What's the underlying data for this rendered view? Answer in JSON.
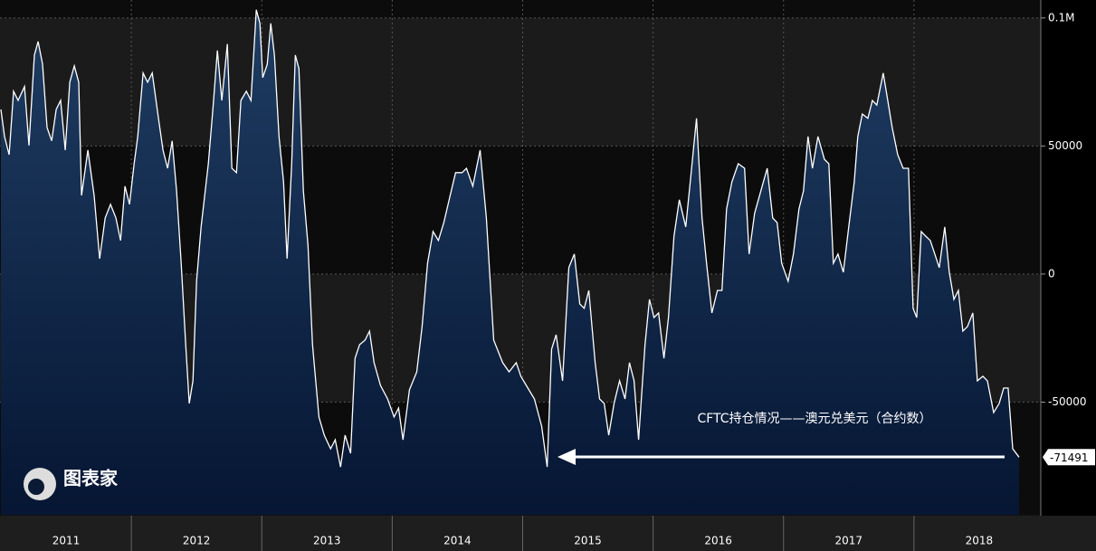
{
  "chart_data": {
    "type": "area",
    "annotation": "CFTC持仓情况——澳元兑美元（合约数）",
    "watermark": "图表家",
    "color": "#ffffff",
    "fill_top": "#1f3d63",
    "fill_bottom": "#061633",
    "grid": true,
    "xlim": [
      2011,
      2019
    ],
    "xticks": [
      {
        "value": 2011.5,
        "label": "2011"
      },
      {
        "value": 2012.5,
        "label": "2012"
      },
      {
        "value": 2013.5,
        "label": "2013"
      },
      {
        "value": 2014.5,
        "label": "2014"
      },
      {
        "value": 2015.5,
        "label": "2015"
      },
      {
        "value": 2016.5,
        "label": "2016"
      },
      {
        "value": 2017.5,
        "label": "2017"
      },
      {
        "value": 2018.5,
        "label": "2018"
      }
    ],
    "ylim": [
      -94000,
      107000
    ],
    "yticks": [
      {
        "value": 100000,
        "label": "0.1M"
      },
      50000,
      0,
      -50000
    ],
    "x": [
      2011.0,
      2011.028,
      2011.063,
      2011.097,
      2011.132,
      2011.181,
      2011.215,
      2011.257,
      2011.285,
      2011.319,
      2011.354,
      2011.389,
      2011.424,
      2011.458,
      2011.493,
      2011.528,
      2011.563,
      2011.597,
      2011.618,
      2011.667,
      2011.715,
      2011.757,
      2011.799,
      2011.84,
      2011.882,
      2011.917,
      2011.951,
      2011.986,
      2012.021,
      2012.049,
      2012.09,
      2012.125,
      2012.16,
      2012.208,
      2012.243,
      2012.278,
      2012.313,
      2012.347,
      2012.382,
      2012.417,
      2012.444,
      2012.472,
      2012.5,
      2012.535,
      2012.59,
      2012.625,
      2012.66,
      2012.694,
      2012.736,
      2012.771,
      2012.806,
      2012.84,
      2012.882,
      2012.917,
      2012.958,
      2012.986,
      2013.007,
      2013.042,
      2013.069,
      2013.097,
      2013.132,
      2013.167,
      2013.194,
      2013.229,
      2013.257,
      2013.285,
      2013.319,
      2013.354,
      2013.389,
      2013.438,
      2013.479,
      2013.528,
      2013.563,
      2013.604,
      2013.639,
      2013.681,
      2013.715,
      2013.75,
      2013.792,
      2013.826,
      2013.861,
      2013.91,
      2013.965,
      2014.014,
      2014.049,
      2014.083,
      2014.132,
      2014.188,
      2014.229,
      2014.271,
      2014.313,
      2014.354,
      2014.396,
      2014.444,
      2014.486,
      2014.535,
      2014.569,
      2014.618,
      2014.674,
      2014.722,
      2014.778,
      2014.847,
      2014.896,
      2014.951,
      2014.986,
      2015.028,
      2015.09,
      2015.146,
      2015.188,
      2015.222,
      2015.257,
      2015.306,
      2015.354,
      2015.396,
      2015.438,
      2015.472,
      2015.507,
      2015.556,
      2015.59,
      2015.625,
      2015.66,
      2015.701,
      2015.743,
      2015.785,
      2015.819,
      2015.854,
      2015.889,
      2015.938,
      2015.972,
      2016.007,
      2016.042,
      2016.083,
      2016.118,
      2016.16,
      2016.201,
      2016.25,
      2016.292,
      2016.333,
      2016.375,
      2016.41,
      2016.451,
      2016.493,
      2016.528,
      2016.563,
      2016.604,
      2016.653,
      2016.701,
      2016.736,
      2016.778,
      2016.826,
      2016.875,
      2016.917,
      2016.951,
      2016.986,
      2017.035,
      2017.076,
      2017.118,
      2017.153,
      2017.188,
      2017.222,
      2017.264,
      2017.313,
      2017.347,
      2017.382,
      2017.417,
      2017.458,
      2017.5,
      2017.542,
      2017.569,
      2017.604,
      2017.646,
      2017.681,
      2017.715,
      2017.764,
      2017.799,
      2017.833,
      2017.875,
      2017.917,
      2017.958,
      2017.993,
      2018.021,
      2018.056,
      2018.09,
      2018.125,
      2018.16,
      2018.194,
      2018.236,
      2018.271,
      2018.306,
      2018.34,
      2018.375,
      2018.41,
      2018.451,
      2018.486,
      2018.528,
      2018.563,
      2018.611,
      2018.653,
      2018.688,
      2018.722,
      2018.757,
      2018.806
    ],
    "values": [
      64300,
      53700,
      46600,
      71400,
      67800,
      73200,
      50200,
      85500,
      90800,
      82000,
      57200,
      52000,
      64300,
      67800,
      48400,
      74900,
      81300,
      74900,
      30700,
      48400,
      30700,
      6000,
      21900,
      27200,
      21900,
      13100,
      34300,
      27200,
      43100,
      53700,
      78500,
      74900,
      78500,
      60800,
      48400,
      41300,
      52000,
      32500,
      4200,
      -27600,
      -50500,
      -41700,
      -2800,
      18400,
      43100,
      64300,
      87300,
      67800,
      89800,
      41300,
      39600,
      67800,
      71400,
      67800,
      103200,
      97900,
      76700,
      81900,
      97900,
      85500,
      53700,
      36000,
      6000,
      43100,
      85500,
      80200,
      32500,
      11300,
      -27600,
      -55800,
      -62900,
      -68200,
      -64700,
      -75300,
      -62900,
      -70000,
      -32900,
      -27600,
      -25800,
      -22300,
      -34600,
      -43500,
      -48800,
      -55800,
      -52300,
      -64700,
      -45200,
      -38200,
      -20500,
      4200,
      16600,
      13100,
      20100,
      30700,
      39600,
      39600,
      41300,
      34300,
      48400,
      21900,
      -25800,
      -34600,
      -38200,
      -34600,
      -39900,
      -43500,
      -48800,
      -59400,
      -75300,
      -29300,
      -23700,
      -41700,
      2500,
      7800,
      -11700,
      -13400,
      -6400,
      -34600,
      -48800,
      -50500,
      -62900,
      -50500,
      -41700,
      -48800,
      -34600,
      -41700,
      -64700,
      -27600,
      -9900,
      -17000,
      -15200,
      -32900,
      -17000,
      14800,
      29000,
      18400,
      39600,
      60800,
      21900,
      4200,
      -15200,
      -6400,
      -6400,
      25400,
      36000,
      43100,
      41300,
      7800,
      23700,
      32500,
      41300,
      21900,
      20100,
      4200,
      -2800,
      7800,
      25400,
      32500,
      53700,
      41300,
      53700,
      44800,
      43100,
      4200,
      7800,
      700,
      18400,
      36000,
      53700,
      62500,
      60800,
      67800,
      66000,
      78500,
      67800,
      57200,
      46600,
      41300,
      41300,
      -13400,
      -17000,
      16600,
      14800,
      13100,
      7800,
      2500,
      18400,
      700,
      -9900,
      -6400,
      -22300,
      -20500,
      -15200,
      -41700,
      -39900,
      -41700,
      -54100,
      -50500,
      -44500,
      -44500,
      -68200,
      -71491
    ]
  }
}
